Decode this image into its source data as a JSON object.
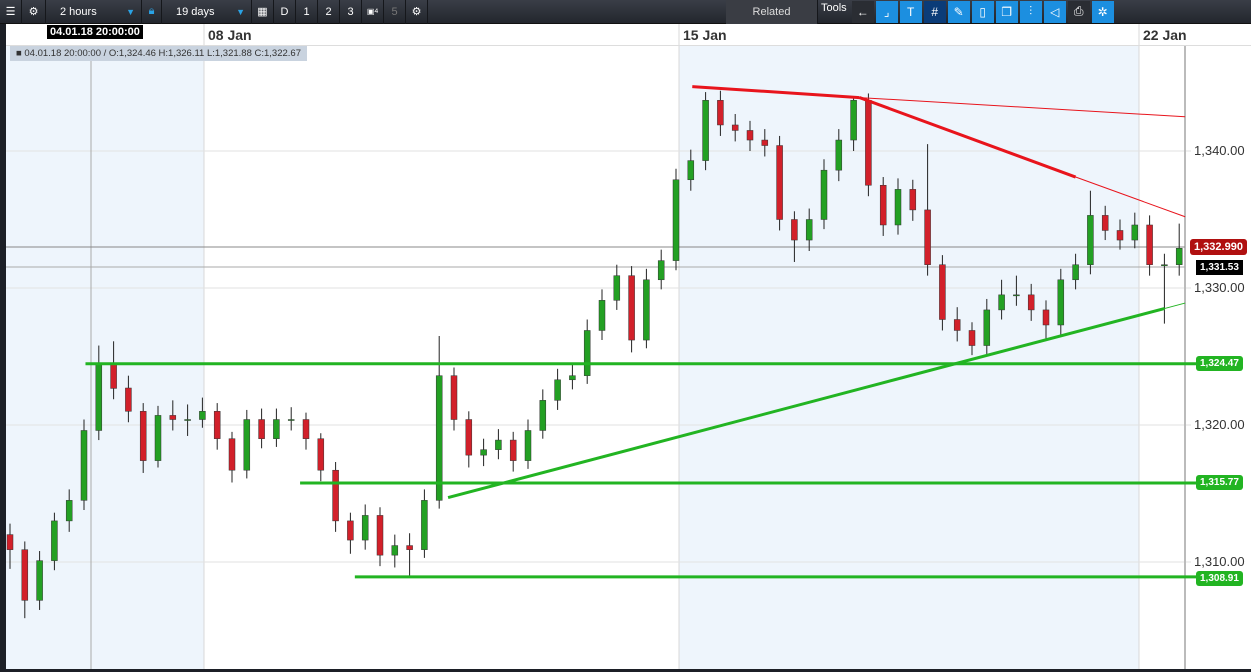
{
  "toolbar": {
    "interval": "2 hours",
    "range": "19 days",
    "periods": [
      "D",
      "1",
      "2",
      "3",
      "4",
      "5"
    ],
    "related": "Related",
    "tools": "Tools"
  },
  "chart": {
    "crosshair_time": "04.01.18 20:00:00",
    "ohlc_info": "■ 04.01.18 20:00:00 / O:1,324.46  H:1,326.11  L:1,321.88  C:1,322.67",
    "date_labels": [
      "08 Jan",
      "15 Jan",
      "22 Jan"
    ],
    "price_labels": [
      "1,340.00",
      "1,330.00",
      "1,320.00",
      "1,310.00"
    ],
    "last_price": "1,332.990",
    "last_close": "1,331.53",
    "horizontal_levels": [
      {
        "label": "1,324.47",
        "value": 1324.47,
        "from_candle": 5.1
      },
      {
        "label": "1,315.77",
        "value": 1315.77,
        "from_candle": 19.6
      },
      {
        "label": "1,308.91",
        "value": 1308.91,
        "from_candle": 23.3
      }
    ],
    "trendlines": [
      {
        "color": "#e8141c",
        "width": 3,
        "points": [
          [
            46.1,
            1344.7
          ],
          [
            57.4,
            1343.9
          ]
        ]
      },
      {
        "color": "#e8141c",
        "width": 3,
        "points": [
          [
            57.4,
            1343.9
          ],
          [
            72,
            1338.1
          ]
        ]
      },
      {
        "color": "#e8141c",
        "width": 1,
        "points": [
          [
            57.4,
            1343.9
          ],
          [
            79.4,
            1342.5
          ]
        ]
      },
      {
        "color": "#e8141c",
        "width": 1,
        "points": [
          [
            72,
            1338.1
          ],
          [
            79.4,
            1335.2
          ]
        ]
      },
      {
        "color": "#22b422",
        "width": 3,
        "points": [
          [
            29.6,
            1314.7
          ],
          [
            78,
            1328.5
          ]
        ]
      },
      {
        "color": "#22b422",
        "width": 1,
        "points": [
          [
            78,
            1328.5
          ],
          [
            79.4,
            1328.9
          ]
        ]
      }
    ],
    "colors": {
      "up": "#23a023",
      "down": "#d2202a",
      "level": "#22b422",
      "shade": "#eef5fc"
    },
    "candles": [
      [
        1312.0,
        1312.8,
        1309.5,
        1310.9
      ],
      [
        1310.9,
        1311.5,
        1305.9,
        1307.2
      ],
      [
        1307.2,
        1310.8,
        1306.5,
        1310.1
      ],
      [
        1310.1,
        1313.6,
        1309.4,
        1313.0
      ],
      [
        1313.0,
        1315.3,
        1312.2,
        1314.5
      ],
      [
        1314.5,
        1320.4,
        1313.8,
        1319.6
      ],
      [
        1319.6,
        1325.8,
        1318.9,
        1324.4
      ],
      [
        1324.46,
        1326.11,
        1321.88,
        1322.67
      ],
      [
        1322.7,
        1323.6,
        1320.2,
        1321.0
      ],
      [
        1321.0,
        1321.6,
        1316.5,
        1317.4
      ],
      [
        1317.4,
        1321.4,
        1316.9,
        1320.7
      ],
      [
        1320.7,
        1321.8,
        1319.6,
        1320.4
      ],
      [
        1320.4,
        1321.5,
        1319.2,
        1320.4
      ],
      [
        1320.4,
        1322.0,
        1319.8,
        1321.0
      ],
      [
        1321.0,
        1321.6,
        1318.2,
        1319.0
      ],
      [
        1319.0,
        1319.5,
        1315.8,
        1316.7
      ],
      [
        1316.7,
        1321.1,
        1316.1,
        1320.4
      ],
      [
        1320.4,
        1321.2,
        1318.3,
        1319.0
      ],
      [
        1319.0,
        1321.2,
        1318.4,
        1320.4
      ],
      [
        1320.4,
        1321.3,
        1319.6,
        1320.4
      ],
      [
        1320.4,
        1320.9,
        1318.2,
        1319.0
      ],
      [
        1319.0,
        1319.4,
        1315.9,
        1316.7
      ],
      [
        1316.7,
        1317.3,
        1312.2,
        1313.0
      ],
      [
        1313.0,
        1313.6,
        1310.6,
        1311.6
      ],
      [
        1311.6,
        1314.2,
        1310.9,
        1313.4
      ],
      [
        1313.4,
        1314.0,
        1309.7,
        1310.5
      ],
      [
        1310.5,
        1312.0,
        1309.6,
        1311.2
      ],
      [
        1311.2,
        1312.1,
        1309.0,
        1310.9
      ],
      [
        1310.9,
        1315.3,
        1310.3,
        1314.5
      ],
      [
        1314.5,
        1326.5,
        1313.9,
        1323.6
      ],
      [
        1323.6,
        1324.2,
        1319.6,
        1320.4
      ],
      [
        1320.4,
        1321.0,
        1316.9,
        1317.8
      ],
      [
        1317.8,
        1319.0,
        1317.0,
        1318.2
      ],
      [
        1318.2,
        1319.7,
        1317.5,
        1318.9
      ],
      [
        1318.9,
        1319.5,
        1316.6,
        1317.4
      ],
      [
        1317.4,
        1320.4,
        1316.8,
        1319.6
      ],
      [
        1319.6,
        1322.6,
        1319.0,
        1321.8
      ],
      [
        1321.8,
        1324.1,
        1321.1,
        1323.3
      ],
      [
        1323.3,
        1324.4,
        1322.6,
        1323.6
      ],
      [
        1323.6,
        1327.7,
        1323.0,
        1326.9
      ],
      [
        1326.9,
        1329.9,
        1326.2,
        1329.1
      ],
      [
        1329.1,
        1331.7,
        1328.4,
        1330.9
      ],
      [
        1330.9,
        1331.6,
        1325.3,
        1326.2
      ],
      [
        1326.2,
        1331.4,
        1325.6,
        1330.6
      ],
      [
        1330.6,
        1332.8,
        1329.9,
        1332.0
      ],
      [
        1332.0,
        1338.7,
        1331.3,
        1337.9
      ],
      [
        1337.9,
        1340.1,
        1337.1,
        1339.3
      ],
      [
        1339.3,
        1344.3,
        1338.6,
        1343.7
      ],
      [
        1343.7,
        1344.4,
        1341.1,
        1341.9
      ],
      [
        1341.9,
        1342.7,
        1340.7,
        1341.5
      ],
      [
        1341.5,
        1342.2,
        1340.0,
        1340.8
      ],
      [
        1340.8,
        1341.6,
        1339.6,
        1340.4
      ],
      [
        1340.4,
        1341.1,
        1334.2,
        1335.0
      ],
      [
        1335.0,
        1335.6,
        1331.9,
        1333.5
      ],
      [
        1333.5,
        1335.8,
        1332.7,
        1335.0
      ],
      [
        1335.0,
        1339.4,
        1334.3,
        1338.6
      ],
      [
        1338.6,
        1341.6,
        1337.8,
        1340.8
      ],
      [
        1340.8,
        1344.0,
        1340.0,
        1343.7
      ],
      [
        1343.7,
        1344.2,
        1336.7,
        1337.5
      ],
      [
        1337.5,
        1338.1,
        1333.8,
        1334.6
      ],
      [
        1334.6,
        1338.0,
        1333.9,
        1337.2
      ],
      [
        1337.2,
        1337.9,
        1334.9,
        1335.7
      ],
      [
        1335.7,
        1340.5,
        1330.9,
        1331.7
      ],
      [
        1331.7,
        1332.4,
        1326.9,
        1327.7
      ],
      [
        1327.7,
        1328.6,
        1326.1,
        1326.9
      ],
      [
        1326.9,
        1327.5,
        1325.1,
        1325.8
      ],
      [
        1325.8,
        1329.2,
        1325.1,
        1328.4
      ],
      [
        1328.4,
        1330.6,
        1327.7,
        1329.5
      ],
      [
        1329.5,
        1330.9,
        1328.7,
        1329.5
      ],
      [
        1329.5,
        1330.3,
        1327.6,
        1328.4
      ],
      [
        1328.4,
        1329.1,
        1326.2,
        1327.3
      ],
      [
        1327.3,
        1331.4,
        1326.6,
        1330.6
      ],
      [
        1330.6,
        1332.5,
        1329.9,
        1331.7
      ],
      [
        1331.7,
        1337.1,
        1331.0,
        1335.3
      ],
      [
        1335.3,
        1336.0,
        1333.5,
        1334.2
      ],
      [
        1334.2,
        1335.0,
        1332.8,
        1333.5
      ],
      [
        1333.5,
        1335.5,
        1332.9,
        1334.6
      ],
      [
        1334.6,
        1335.3,
        1330.9,
        1331.7
      ],
      [
        1331.7,
        1332.5,
        1327.4,
        1331.7
      ],
      [
        1331.7,
        1334.7,
        1330.9,
        1332.9
      ]
    ]
  }
}
